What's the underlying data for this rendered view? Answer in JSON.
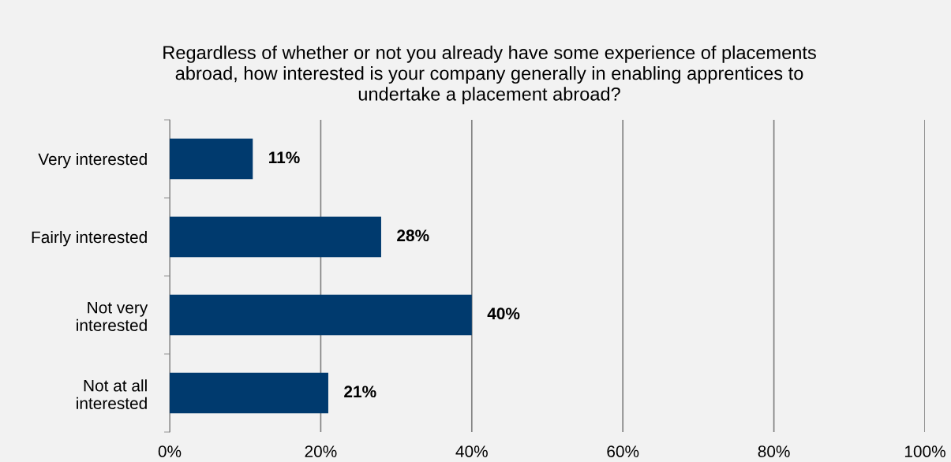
{
  "chart_data": {
    "type": "bar",
    "orientation": "horizontal",
    "title": "Regardless of whether or not you already have some experience of placements\nabroad, how interested is your company generally in enabling apprentices to\nundertake a placement abroad?",
    "categories": [
      "Very interested",
      "Fairly interested",
      "Not very\ninterested",
      "Not at all\ninterested"
    ],
    "values": [
      11,
      28,
      40,
      21
    ],
    "value_labels": [
      "11%",
      "28%",
      "40%",
      "21%"
    ],
    "color": "#003a6e",
    "xlim": [
      0,
      100
    ],
    "xticks": [
      {
        "value": 0,
        "label": "0%"
      },
      {
        "value": 20,
        "label": "20%"
      },
      {
        "value": 40,
        "label": "40%"
      },
      {
        "value": 60,
        "label": "60%"
      },
      {
        "value": 80,
        "label": "80%"
      },
      {
        "value": 100,
        "label": "100%"
      }
    ],
    "grid": "x"
  }
}
